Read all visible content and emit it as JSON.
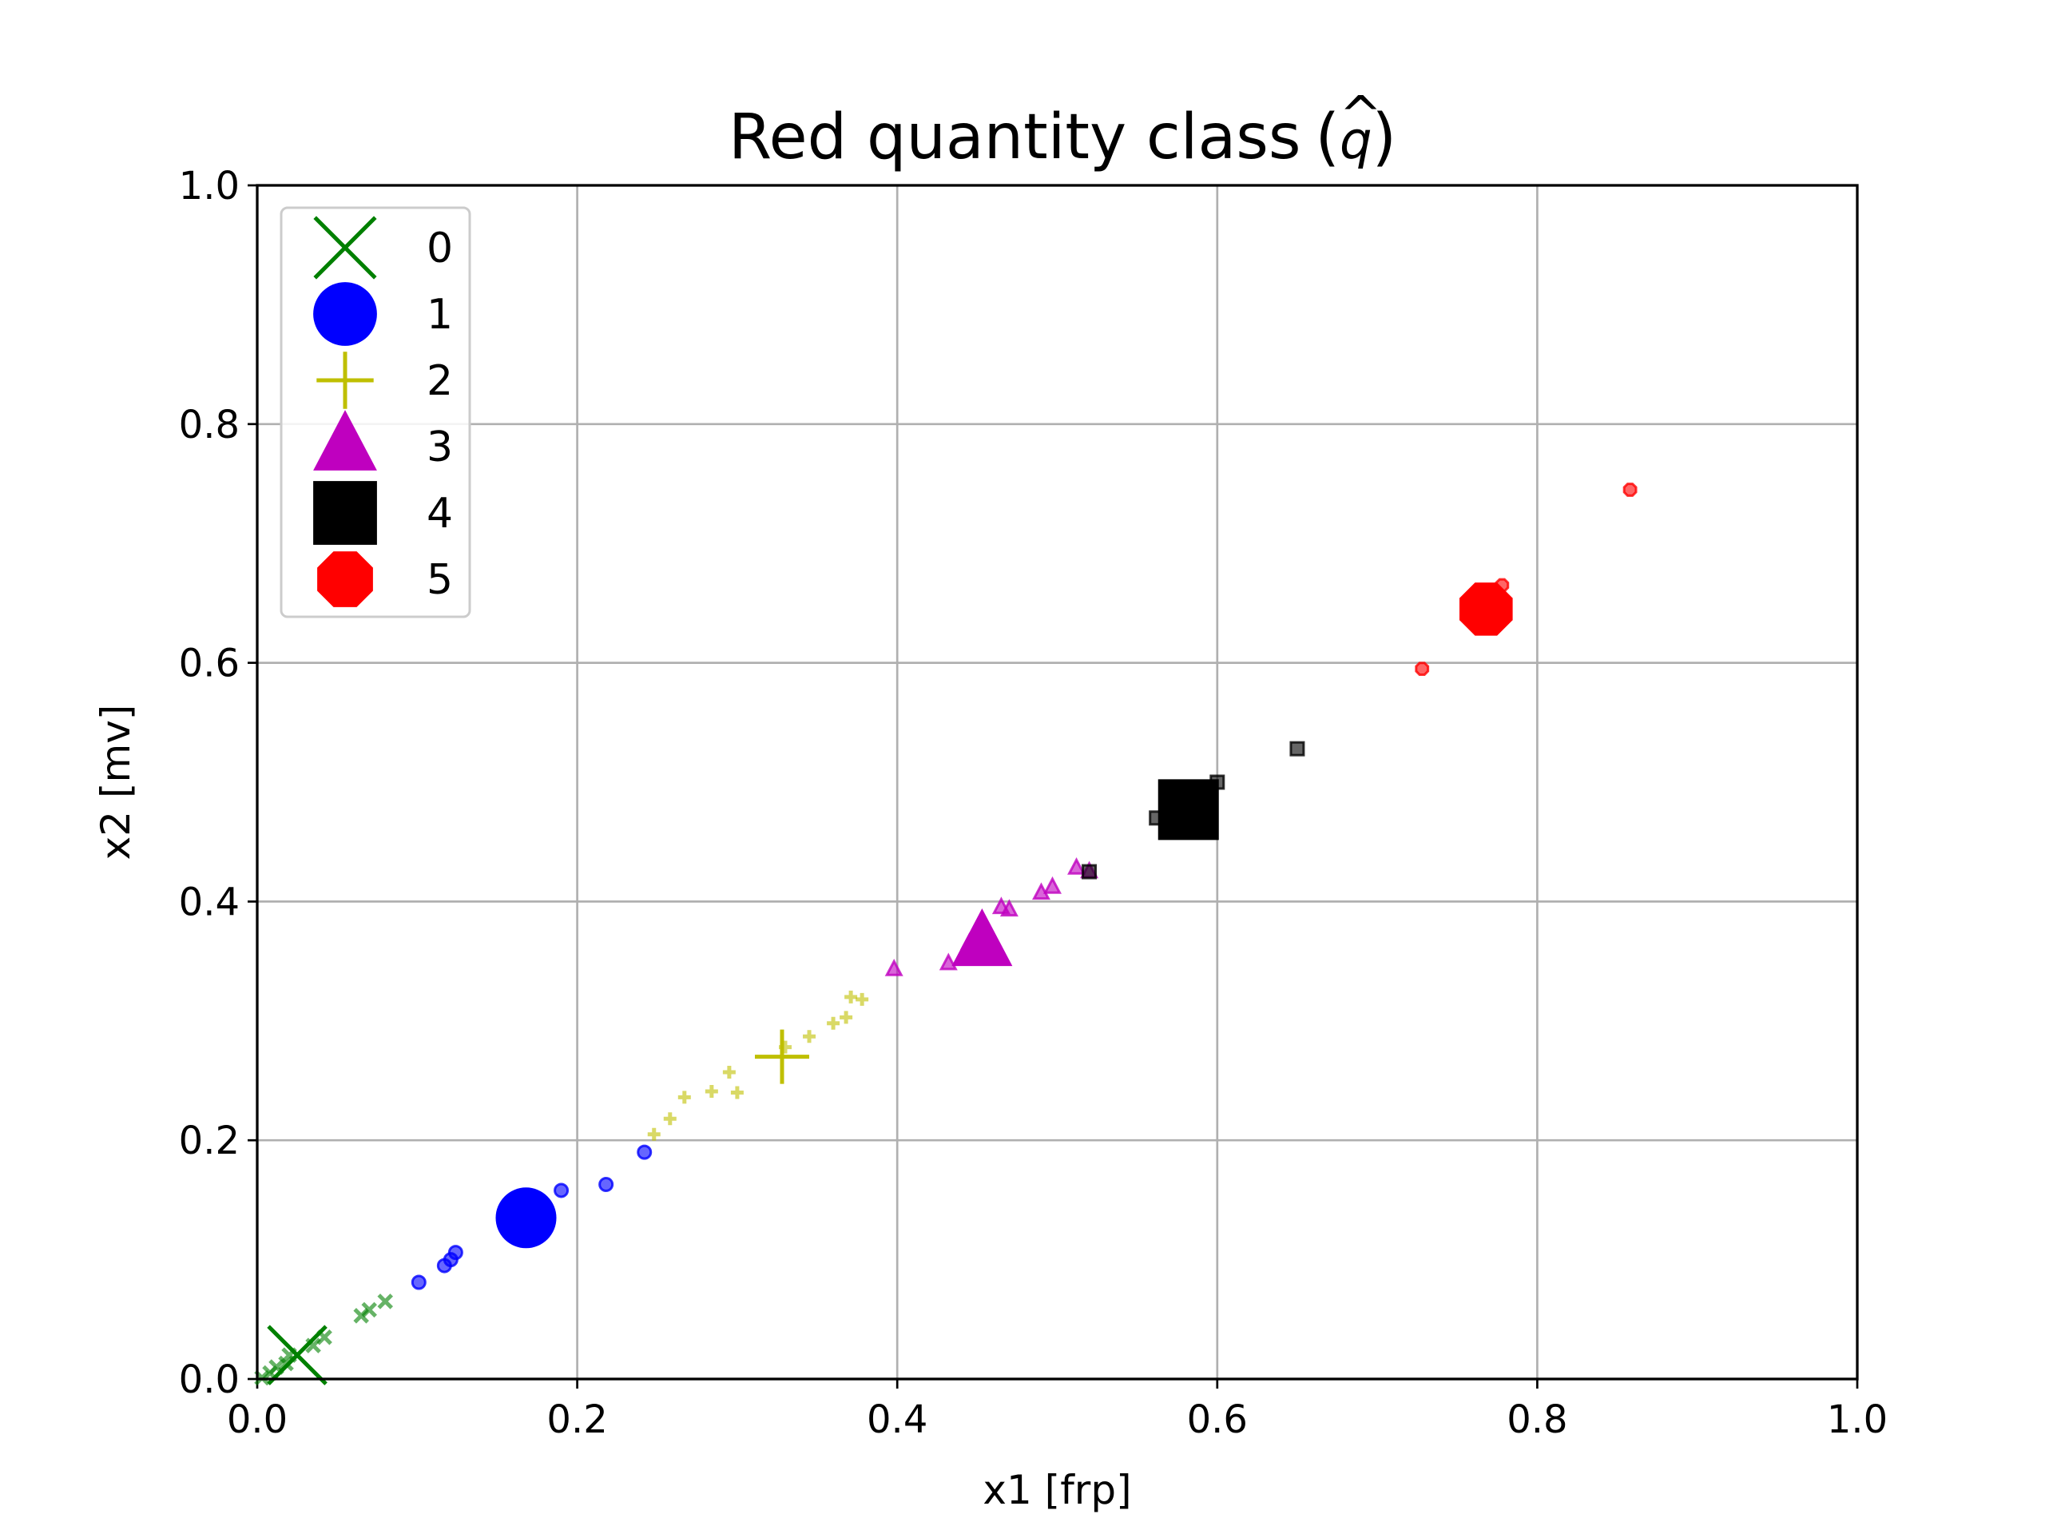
{
  "chart_data": {
    "type": "scatter",
    "title": "Red quantity class",
    "title_symbol": "q",
    "title_symbol_accent": "^",
    "xlabel": "x1 [frp]",
    "ylabel": "x2 [mv]",
    "xlim": [
      0.0,
      1.0
    ],
    "ylim": [
      0.0,
      1.0
    ],
    "xticks": [
      "0.0",
      "0.2",
      "0.4",
      "0.6",
      "0.8",
      "1.0"
    ],
    "yticks": [
      "0.0",
      "0.2",
      "0.4",
      "0.6",
      "0.8",
      "1.0"
    ],
    "grid": true,
    "legend_position": "top-left",
    "series": [
      {
        "name": "0",
        "marker": "x",
        "color": "#008000",
        "points": [
          [
            0.003,
            0.001
          ],
          [
            0.008,
            0.005
          ],
          [
            0.012,
            0.01
          ],
          [
            0.018,
            0.013
          ],
          [
            0.02,
            0.02
          ],
          [
            0.035,
            0.028
          ],
          [
            0.042,
            0.035
          ],
          [
            0.065,
            0.053
          ],
          [
            0.07,
            0.058
          ],
          [
            0.08,
            0.065
          ]
        ],
        "centroid": [
          0.025,
          0.02
        ]
      },
      {
        "name": "1",
        "marker": "circle",
        "color": "#0000ff",
        "points": [
          [
            0.101,
            0.081
          ],
          [
            0.117,
            0.095
          ],
          [
            0.121,
            0.1
          ],
          [
            0.124,
            0.106
          ],
          [
            0.19,
            0.158
          ],
          [
            0.218,
            0.163
          ],
          [
            0.242,
            0.19
          ]
        ],
        "centroid": [
          0.168,
          0.135
        ]
      },
      {
        "name": "2",
        "marker": "plus",
        "color": "#bfbf00",
        "points": [
          [
            0.248,
            0.205
          ],
          [
            0.258,
            0.218
          ],
          [
            0.267,
            0.236
          ],
          [
            0.284,
            0.241
          ],
          [
            0.295,
            0.257
          ],
          [
            0.3,
            0.24
          ],
          [
            0.33,
            0.278
          ],
          [
            0.345,
            0.287
          ],
          [
            0.36,
            0.298
          ],
          [
            0.368,
            0.303
          ],
          [
            0.371,
            0.32
          ],
          [
            0.378,
            0.318
          ]
        ],
        "centroid": [
          0.328,
          0.27
        ]
      },
      {
        "name": "3",
        "marker": "triangle",
        "color": "#bf00bf",
        "points": [
          [
            0.398,
            0.343
          ],
          [
            0.432,
            0.348
          ],
          [
            0.445,
            0.365
          ],
          [
            0.465,
            0.395
          ],
          [
            0.47,
            0.393
          ],
          [
            0.49,
            0.407
          ],
          [
            0.497,
            0.412
          ],
          [
            0.512,
            0.428
          ],
          [
            0.52,
            0.425
          ]
        ],
        "centroid": [
          0.453,
          0.365
        ]
      },
      {
        "name": "4",
        "marker": "square",
        "color": "#000000",
        "points": [
          [
            0.52,
            0.425
          ],
          [
            0.562,
            0.47
          ],
          [
            0.6,
            0.5
          ],
          [
            0.65,
            0.528
          ]
        ],
        "centroid": [
          0.582,
          0.477
        ]
      },
      {
        "name": "5",
        "marker": "octagon",
        "color": "#ff0000",
        "points": [
          [
            0.728,
            0.595
          ],
          [
            0.778,
            0.665
          ],
          [
            0.858,
            0.745
          ]
        ],
        "centroid": [
          0.768,
          0.645
        ]
      }
    ]
  }
}
